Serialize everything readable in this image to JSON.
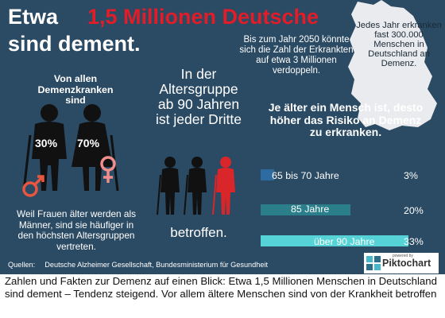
{
  "title": {
    "prefix": "Etwa",
    "highlight": "1,5 Millionen Deutsche",
    "line2": "sind dement."
  },
  "projection_text": "Bis zum Jahr 2050 könnte sich die Zahl der Erkrankten auf etwa 3 Millionen verdoppeln.",
  "yearly_text": "Jedes Jahr erkranken fast 300.000 Menschen in Deutschland an Demenz.",
  "women": {
    "heading": "Von allen Demenzkranken sind",
    "male_pct": "30%",
    "female_pct": "70%",
    "note": "Weil Frauen älter werden als Männer, sind sie häufiger in den höchsten Altersgruppen vertreten."
  },
  "age90": {
    "heading": "In der Altersgruppe ab 90 Jahren ist jeder Dritte",
    "footer": "betroffen."
  },
  "risk": {
    "heading": "Je älter ein Mensch ist, desto höher das Risiko an Demenz zu erkranken.",
    "rows": [
      {
        "label": "65 bis 70 Jahre",
        "value": "3%",
        "share": 0.03,
        "color": "#2e6ba0"
      },
      {
        "label": "85 Jahre",
        "value": "20%",
        "share": 0.2,
        "color": "#2a7f8a"
      },
      {
        "label": "über 90 Jahre",
        "value": "33%",
        "share": 0.33,
        "color": "#56d3d6"
      }
    ]
  },
  "sources": {
    "label": "Quellen:",
    "text": "Deutsche Alzheimer Gesellschaft, Bundesministerium für Gesundheit"
  },
  "logo": {
    "powered": "powered by",
    "name": "Piktochart"
  },
  "caption": "Zahlen und Fakten zur Demenz auf einen Blick: Etwa 1,5 Millionen Menschen in Deutschland sind dement – Tendenz steigend. Vor allem ältere Menschen sind von der Krankheit betroffen",
  "colors": {
    "background": "#2b4a63",
    "accent_red": "#e01d28",
    "female_symbol": "#f08d8d",
    "male_symbol": "#e8563f",
    "figure_dark": "#111111",
    "figure_red": "#d9262b"
  }
}
